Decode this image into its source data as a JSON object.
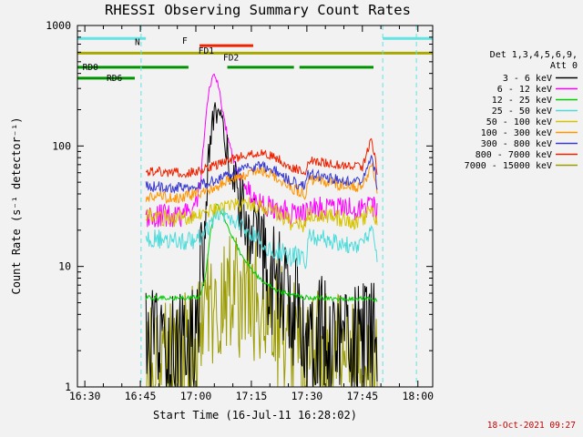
{
  "window": {
    "background": "#f2f2f2"
  },
  "title": "RHESSI Observing Summary Count Rates",
  "timestamp": "18-Oct-2021 09:27",
  "chart_data": {
    "type": "line",
    "title": "RHESSI Observing Summary Count Rates",
    "xlabel": "Start Time (16-Jul-11 16:28:02)",
    "ylabel": "Count Rate (s⁻¹ detector⁻¹)",
    "yscale": "log",
    "ylim": [
      1,
      1000
    ],
    "xlim": [
      28,
      124
    ],
    "x_unit": "minutes after 16:00 UT",
    "grid": false,
    "legend": {
      "position": "right",
      "title_lines": [
        "Det 1,3,4,5,6,9,",
        "Att 0"
      ]
    },
    "xticks": [
      {
        "t": 30,
        "label": "16:30"
      },
      {
        "t": 45,
        "label": "16:45"
      },
      {
        "t": 60,
        "label": "17:00"
      },
      {
        "t": 75,
        "label": "17:15"
      },
      {
        "t": 90,
        "label": "17:30"
      },
      {
        "t": 105,
        "label": "17:45"
      },
      {
        "t": 120,
        "label": "18:00"
      }
    ],
    "yticks": [
      {
        "v": 1,
        "label": "1"
      },
      {
        "v": 10,
        "label": "10"
      },
      {
        "v": 100,
        "label": "100"
      },
      {
        "v": 1000,
        "label": "1000"
      }
    ],
    "series": [
      {
        "name": "3 - 6 keV",
        "color": "#000000",
        "noise": 0.5,
        "points": [
          [
            46.5,
            2
          ],
          [
            58,
            2.2
          ],
          [
            60,
            3
          ],
          [
            61.5,
            8
          ],
          [
            62.5,
            25
          ],
          [
            63.5,
            80
          ],
          [
            64.5,
            150
          ],
          [
            65.5,
            200
          ],
          [
            66.5,
            170
          ],
          [
            68,
            100
          ],
          [
            70,
            55
          ],
          [
            72,
            33
          ],
          [
            75,
            19
          ],
          [
            78,
            12
          ],
          [
            81,
            8
          ],
          [
            84,
            5.5
          ],
          [
            87,
            4
          ],
          [
            90,
            3
          ],
          [
            94,
            2.8
          ],
          [
            98,
            2.6
          ],
          [
            102,
            2.5
          ],
          [
            106,
            2.5
          ],
          [
            108,
            3
          ],
          [
            109,
            2
          ]
        ]
      },
      {
        "name": "6 - 12 keV",
        "color": "#ff00ff",
        "noise": 0.18,
        "points": [
          [
            46.5,
            26
          ],
          [
            58,
            27
          ],
          [
            60,
            31
          ],
          [
            61.5,
            60
          ],
          [
            62.5,
            140
          ],
          [
            63.5,
            300
          ],
          [
            64.8,
            380
          ],
          [
            66,
            320
          ],
          [
            67.5,
            180
          ],
          [
            69,
            100
          ],
          [
            71,
            62
          ],
          [
            73.5,
            45
          ],
          [
            76,
            36
          ],
          [
            80,
            31
          ],
          [
            85,
            28
          ],
          [
            89.5,
            27
          ],
          [
            90.5,
            31
          ],
          [
            95,
            30
          ],
          [
            100,
            30
          ],
          [
            105,
            30
          ],
          [
            107.5,
            33
          ],
          [
            109,
            27
          ]
        ]
      },
      {
        "name": "12 - 25 keV",
        "color": "#00cd00",
        "noise": 0.02,
        "points": [
          [
            46.5,
            5.5
          ],
          [
            61,
            5.5
          ],
          [
            62.5,
            8
          ],
          [
            64,
            20
          ],
          [
            65.5,
            33
          ],
          [
            67,
            28
          ],
          [
            69,
            20
          ],
          [
            72,
            13
          ],
          [
            75,
            9.5
          ],
          [
            78,
            7.5
          ],
          [
            82,
            6.3
          ],
          [
            86,
            5.8
          ],
          [
            90,
            5.5
          ],
          [
            100,
            5.4
          ],
          [
            107,
            5.4
          ],
          [
            109,
            5.2
          ]
        ]
      },
      {
        "name": "25 - 50 keV",
        "color": "#4ddbdb",
        "noise": 0.11,
        "points": [
          [
            46.5,
            17
          ],
          [
            55,
            16.5
          ],
          [
            60,
            16.5
          ],
          [
            62.5,
            19
          ],
          [
            65,
            24
          ],
          [
            67.5,
            27
          ],
          [
            70,
            25
          ],
          [
            73,
            21
          ],
          [
            76,
            17.5
          ],
          [
            80,
            14.5
          ],
          [
            84,
            12.5
          ],
          [
            88,
            11.5
          ],
          [
            89.8,
            11
          ],
          [
            90.3,
            17
          ],
          [
            93,
            17.5
          ],
          [
            97,
            16.5
          ],
          [
            101,
            15.5
          ],
          [
            105,
            15
          ],
          [
            107.5,
            20
          ],
          [
            109,
            13
          ]
        ]
      },
      {
        "name": "50 - 100 keV",
        "color": "#d6c400",
        "noise": 0.12,
        "points": [
          [
            46.5,
            26
          ],
          [
            55,
            25
          ],
          [
            60,
            25.5
          ],
          [
            63,
            27
          ],
          [
            67,
            30
          ],
          [
            71,
            32
          ],
          [
            75,
            33
          ],
          [
            78,
            32
          ],
          [
            82,
            28
          ],
          [
            86,
            23
          ],
          [
            89.8,
            21
          ],
          [
            90.3,
            27
          ],
          [
            94,
            26
          ],
          [
            98,
            25
          ],
          [
            102,
            24
          ],
          [
            105,
            24
          ],
          [
            107.5,
            30
          ],
          [
            109,
            22
          ]
        ]
      },
      {
        "name": "100 - 300 keV",
        "color": "#ff9500",
        "noise": 0.11,
        "points": [
          [
            46.5,
            38
          ],
          [
            55,
            38
          ],
          [
            60,
            39
          ],
          [
            63,
            42
          ],
          [
            67,
            48
          ],
          [
            71,
            55
          ],
          [
            75,
            60
          ],
          [
            78,
            62
          ],
          [
            82,
            55
          ],
          [
            86,
            45
          ],
          [
            89.8,
            40
          ],
          [
            90.3,
            53
          ],
          [
            94,
            51
          ],
          [
            98,
            48
          ],
          [
            102,
            46
          ],
          [
            105,
            46
          ],
          [
            107.5,
            70
          ],
          [
            109,
            42
          ]
        ]
      },
      {
        "name": "300 - 800 keV",
        "color": "#3a3ad1",
        "noise": 0.11,
        "points": [
          [
            46.5,
            46
          ],
          [
            55,
            45
          ],
          [
            60,
            46
          ],
          [
            63,
            49
          ],
          [
            67,
            55
          ],
          [
            71,
            62
          ],
          [
            75,
            67
          ],
          [
            78,
            68
          ],
          [
            82,
            61
          ],
          [
            86,
            51
          ],
          [
            89.8,
            46
          ],
          [
            90.3,
            58
          ],
          [
            94,
            56
          ],
          [
            98,
            53
          ],
          [
            102,
            51
          ],
          [
            105,
            51
          ],
          [
            107.5,
            85
          ],
          [
            109,
            48
          ]
        ]
      },
      {
        "name": "800 - 7000 keV",
        "color": "#ee2200",
        "noise": 0.11,
        "points": [
          [
            46.5,
            62
          ],
          [
            55,
            60
          ],
          [
            60,
            61
          ],
          [
            63,
            65
          ],
          [
            67,
            72
          ],
          [
            71,
            80
          ],
          [
            75,
            86
          ],
          [
            78,
            88
          ],
          [
            82,
            79
          ],
          [
            86,
            66
          ],
          [
            89.8,
            60
          ],
          [
            90.3,
            77
          ],
          [
            94,
            74
          ],
          [
            98,
            70
          ],
          [
            102,
            67
          ],
          [
            105,
            67
          ],
          [
            107.5,
            115
          ],
          [
            109,
            62
          ]
        ]
      },
      {
        "name": "7000 - 15000 keV",
        "color": "#9c9c00",
        "noise": 0.55,
        "points": [
          [
            46.5,
            1.3
          ],
          [
            55,
            1.6
          ],
          [
            60,
            2.5
          ],
          [
            63,
            3.5
          ],
          [
            66,
            4.5
          ],
          [
            70,
            5.5
          ],
          [
            74,
            5.5
          ],
          [
            78,
            4.5
          ],
          [
            82,
            3.2
          ],
          [
            86,
            2.2
          ],
          [
            90,
            2.2
          ],
          [
            95,
            1.8
          ],
          [
            100,
            1.6
          ],
          [
            105,
            1.4
          ],
          [
            109,
            1.2
          ]
        ]
      }
    ],
    "flags": [
      {
        "name": "night-flag",
        "label": "N",
        "color": "#63e3e3",
        "level": 780,
        "segments": [
          [
            28,
            46.5
          ],
          [
            110.5,
            124
          ]
        ],
        "label_t": 44.2,
        "label_dy": 7
      },
      {
        "name": "flare-flag",
        "label": "F",
        "color": "#ee2200",
        "level": 680,
        "segments": [],
        "label_t": 57,
        "label_dy": -2
      },
      {
        "name": "front-decimation-1-flag",
        "label": "FD1",
        "color": "#ee2200",
        "level": 680,
        "segments": [
          [
            61,
            75.5
          ]
        ],
        "label_t": 62.8,
        "label_dy": 9
      },
      {
        "name": "front-decimation-2-flag",
        "label": "FD2",
        "color": "#a8a800",
        "level": 590,
        "segments": [
          [
            28,
            124
          ]
        ],
        "label_t": 69.5,
        "label_dy": 8
      },
      {
        "name": "rear-decimation-0-flag",
        "label": "RD0",
        "color": "#009300",
        "level": 450,
        "segments": [
          [
            28,
            58
          ],
          [
            68.5,
            86.5
          ],
          [
            88,
            108
          ]
        ],
        "label_t": 31.5,
        "label_dy": 3
      },
      {
        "name": "rear-decimation-6-flag",
        "label": "RD6",
        "color": "#009300",
        "level": 365,
        "segments": [
          [
            28,
            43.5
          ]
        ],
        "label_t": 38,
        "label_dy": 3
      }
    ],
    "eclipse_lines": {
      "color": "#63e3e3",
      "times": [
        45.2,
        110.5,
        119.6
      ]
    }
  }
}
